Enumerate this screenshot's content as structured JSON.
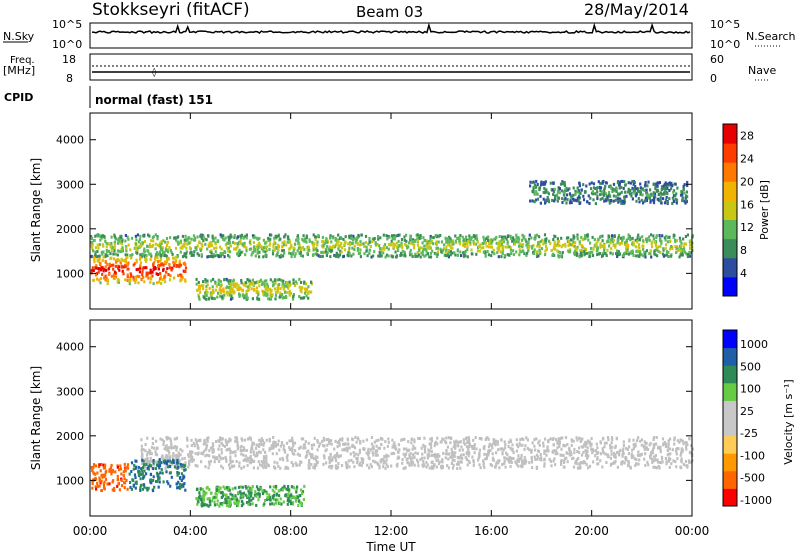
{
  "header": {
    "station": "Stokkseyri (fitACF)",
    "beam": "Beam 03",
    "date": "28/May/2014"
  },
  "status_panels": {
    "nsky_label": "N.Sky",
    "nsky_tick_hi": "10^5",
    "nsky_tick_lo": "10^0",
    "nsearch_label": "N.Search",
    "freq_label": "Freq.",
    "freq_unit": "[MHz]",
    "freq_tick_hi": "18",
    "freq_tick_lo": "8",
    "nave_tick_hi": "60",
    "nave_tick_lo": "0",
    "nave_label": "Nave",
    "cpid_label": "CPID",
    "cpid_value": "normal (fast) 151"
  },
  "colors": {
    "power_scale": [
      "#0000ff",
      "#2d4da0",
      "#3c8c5a",
      "#5cb85c",
      "#c8c814",
      "#f0b400",
      "#ff7800",
      "#ff3c00",
      "#e60000"
    ],
    "velocity_scale": [
      "#ff0000",
      "#ff6600",
      "#ff9900",
      "#ffcc55",
      "#c8c8c8",
      "#c8c8c8",
      "#66cc44",
      "#2e8b57",
      "#1f5fa8",
      "#0000ff"
    ],
    "ground_scatter": "#c0c0c0"
  },
  "chart_data": [
    {
      "type": "heatmap",
      "title": "",
      "xlabel": "",
      "ylabel": "Slant Range [km]",
      "x_ticks": [
        "00:00",
        "04:00",
        "08:00",
        "12:00",
        "16:00",
        "20:00",
        "00:00"
      ],
      "x_range_hours": [
        0,
        24
      ],
      "y_ticks": [
        "1000",
        "2000",
        "3000",
        "4000"
      ],
      "ylim": [
        200,
        4600
      ],
      "colorbar": {
        "label": "Power [dB]",
        "ticks": [
          "4",
          "8",
          "12",
          "16",
          "20",
          "24",
          "28"
        ],
        "range": [
          0,
          30
        ]
      },
      "features": [
        {
          "name": "F-region band",
          "hours": [
            0,
            24
          ],
          "range_km": [
            1400,
            1900
          ],
          "power_db": 14
        },
        {
          "name": "Near-range echo",
          "hours": [
            0,
            3.8
          ],
          "range_km": [
            800,
            1400
          ],
          "power_db": 28
        },
        {
          "name": "E-region patch",
          "hours": [
            4.2,
            8.8
          ],
          "range_km": [
            450,
            900
          ],
          "power_db": 16
        },
        {
          "name": "Distant echoes",
          "hours": [
            17.5,
            23.8
          ],
          "range_km": [
            2600,
            3100
          ],
          "power_db": 8
        }
      ],
      "grid": false
    },
    {
      "type": "heatmap",
      "title": "",
      "xlabel": "Time UT",
      "ylabel": "Slant Range [km]",
      "x_ticks": [
        "00:00",
        "04:00",
        "08:00",
        "12:00",
        "16:00",
        "20:00",
        "00:00"
      ],
      "x_range_hours": [
        0,
        24
      ],
      "y_ticks": [
        "1000",
        "2000",
        "3000",
        "4000"
      ],
      "ylim": [
        200,
        4600
      ],
      "colorbar": {
        "label": "Velocity [m s⁻¹]",
        "ticks": [
          "1000",
          "500",
          "100",
          "25",
          "-25",
          "-100",
          "-500",
          "-1000"
        ]
      },
      "features": [
        {
          "name": "Ground scatter band",
          "hours": [
            2,
            24
          ],
          "range_km": [
            1300,
            2000
          ],
          "velocity_ms": 0
        },
        {
          "name": "Away-flow echo",
          "hours": [
            0,
            1.5
          ],
          "range_km": [
            800,
            1400
          ],
          "velocity_ms": -800
        },
        {
          "name": "Toward-flow echo",
          "hours": [
            1.5,
            3.8
          ],
          "range_km": [
            800,
            1500
          ],
          "velocity_ms": 500
        },
        {
          "name": "Low-velocity patch",
          "hours": [
            4.2,
            8.5
          ],
          "range_km": [
            450,
            900
          ],
          "velocity_ms": 100
        }
      ],
      "grid": false
    }
  ]
}
